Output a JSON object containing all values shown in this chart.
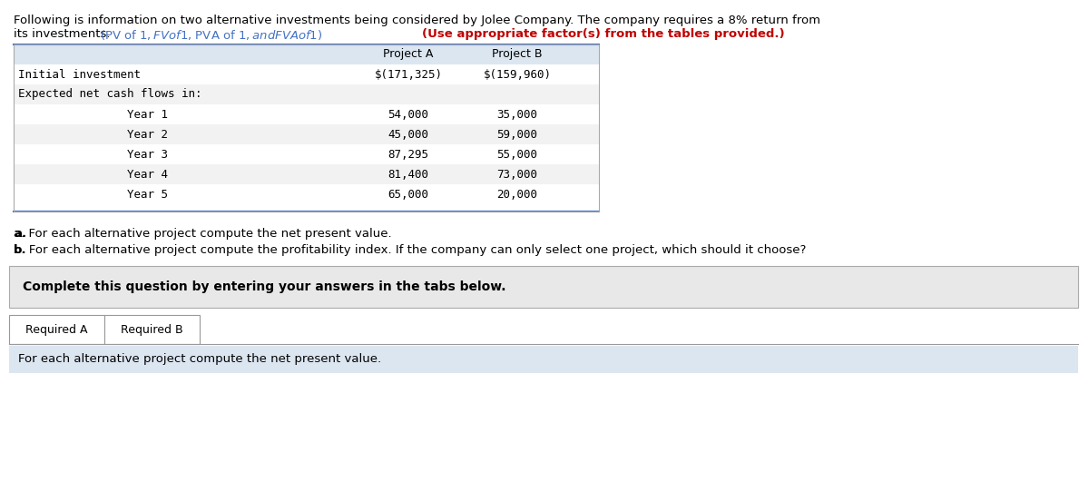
{
  "intro_text_line1": "Following is information on two alternative investments being considered by Jolee Company. The company requires a 8% return from",
  "intro_text_line2": "its investments.",
  "intro_links": "(PV of $1, FV of $1, PVA of $1, and FVA of $1)",
  "intro_bold": "(Use appropriate factor(s) from the tables provided.)",
  "table_header_a": "Project A",
  "table_header_b": "Project B",
  "row_initial_label": "Initial investment",
  "row_initial_a": "$(171,325)",
  "row_initial_b": "$(159,960)",
  "row_expected_label": "Expected net cash flows in:",
  "years": [
    "Year 1",
    "Year 2",
    "Year 3",
    "Year 4",
    "Year 5"
  ],
  "project_a_values": [
    "54,000",
    "45,000",
    "87,295",
    "81,400",
    "65,000"
  ],
  "project_b_values": [
    "35,000",
    "59,000",
    "55,000",
    "73,000",
    "20,000"
  ],
  "question_a": "a. For each alternative project compute the net present value.",
  "question_b": "b. For each alternative project compute the profitability index. If the company can only select one project, which should it choose?",
  "complete_text": "Complete this question by entering your answers in the tabs below.",
  "tab1": "Required A",
  "tab2": "Required B",
  "footer_text": "For each alternative project compute the net present value.",
  "bg_color": "#ffffff",
  "table_header_bg": "#dce6f1",
  "table_alt_row_bg": "#f2f2f2",
  "table_white_row_bg": "#ffffff",
  "table_border_color": "#4472c4",
  "complete_box_bg": "#e8e8e8",
  "footer_box_bg": "#dce6f1",
  "tab_border_color": "#999999",
  "link_color": "#4472c4",
  "bold_color": "#c00000",
  "text_color": "#000000",
  "mono_font": "DejaVu Sans Mono",
  "sans_font": "DejaVu Sans"
}
